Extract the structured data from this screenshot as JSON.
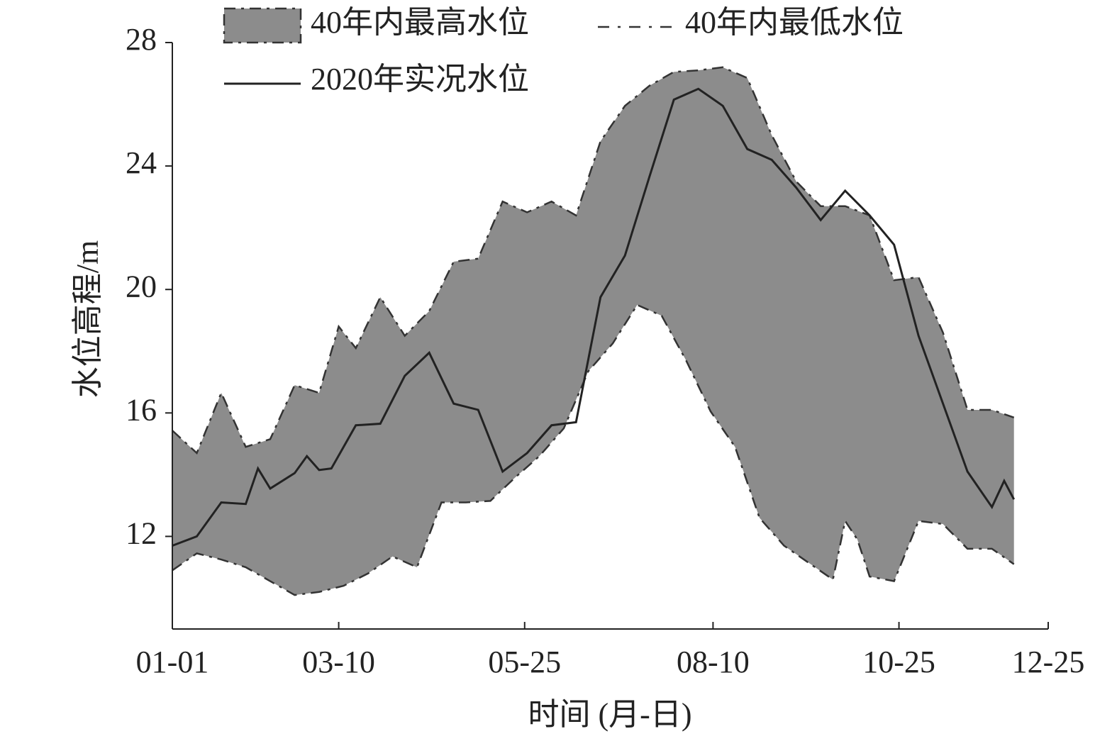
{
  "chart_data": {
    "type": "band-line",
    "x_label": "时间 (月-日)",
    "y_label": "水位高程/m",
    "ylim": [
      9,
      28
    ],
    "yticks": [
      12,
      16,
      20,
      24,
      28
    ],
    "xlim": [
      "01-01",
      "12-25"
    ],
    "xticks": [
      "01-01",
      "03-10",
      "05-25",
      "08-10",
      "10-25",
      "12-25"
    ],
    "band_color": "#8c8c8c",
    "series": [
      {
        "name": "40年内最高水位",
        "color": "#333333",
        "style": "dashed",
        "x": [
          "01-01",
          "01-11",
          "01-21",
          "01-31",
          "02-10",
          "02-20",
          "03-02",
          "03-10",
          "03-17",
          "03-27",
          "04-06",
          "04-16",
          "04-26",
          "05-06",
          "05-16",
          "05-26",
          "06-05",
          "06-15",
          "06-25",
          "07-05",
          "07-15",
          "07-25",
          "08-04",
          "08-14",
          "08-24",
          "09-03",
          "09-13",
          "09-23",
          "10-03",
          "10-13",
          "10-23",
          "11-02",
          "11-12",
          "11-22",
          "12-02",
          "12-11"
        ],
        "values": [
          15.43,
          14.7,
          16.65,
          14.9,
          15.15,
          16.9,
          16.65,
          18.8,
          18.1,
          19.75,
          18.5,
          19.3,
          20.9,
          21.0,
          22.85,
          22.5,
          22.85,
          22.4,
          24.8,
          25.95,
          26.6,
          27.05,
          27.1,
          27.2,
          26.85,
          25.0,
          23.5,
          22.7,
          22.7,
          22.4,
          20.3,
          20.4,
          18.6,
          16.1,
          16.1,
          15.85
        ]
      },
      {
        "name": "40年内最低水位",
        "color": "#333333",
        "style": "dashed",
        "x": [
          "01-01",
          "01-11",
          "01-21",
          "01-31",
          "02-10",
          "02-20",
          "03-02",
          "03-12",
          "03-22",
          "04-01",
          "04-11",
          "04-21",
          "05-01",
          "05-11",
          "05-21",
          "05-31",
          "06-10",
          "06-20",
          "06-30",
          "07-10",
          "07-20",
          "07-30",
          "08-09",
          "08-19",
          "08-29",
          "09-08",
          "09-18",
          "09-28",
          "10-03",
          "10-08",
          "10-13",
          "10-23",
          "11-02",
          "11-12",
          "11-22",
          "12-02",
          "12-11"
        ],
        "values": [
          10.9,
          11.45,
          11.25,
          11.0,
          10.55,
          10.1,
          10.2,
          10.4,
          10.8,
          11.35,
          11.0,
          13.1,
          13.1,
          13.15,
          13.9,
          14.6,
          15.5,
          17.35,
          18.25,
          19.5,
          19.15,
          17.7,
          16.05,
          14.9,
          12.6,
          11.7,
          11.15,
          10.6,
          12.5,
          11.9,
          10.7,
          10.55,
          12.5,
          12.4,
          11.6,
          11.6,
          11.1
        ]
      },
      {
        "name": "2020年实况水位",
        "color": "#222222",
        "style": "solid",
        "x": [
          "01-01",
          "01-11",
          "01-21",
          "01-31",
          "02-05",
          "02-10",
          "02-20",
          "02-25",
          "03-02",
          "03-07",
          "03-17",
          "03-27",
          "04-06",
          "04-16",
          "04-26",
          "05-06",
          "05-16",
          "05-26",
          "06-05",
          "06-15",
          "06-25",
          "07-05",
          "07-15",
          "07-25",
          "08-04",
          "08-14",
          "08-24",
          "09-03",
          "09-13",
          "09-23",
          "10-03",
          "10-13",
          "10-23",
          "11-02",
          "11-12",
          "11-22",
          "12-02",
          "12-07",
          "12-11"
        ],
        "values": [
          11.7,
          12.0,
          13.1,
          13.05,
          14.2,
          13.55,
          14.05,
          14.6,
          14.15,
          14.2,
          15.6,
          15.65,
          17.2,
          17.95,
          16.3,
          16.1,
          14.1,
          14.7,
          15.6,
          15.7,
          19.75,
          21.1,
          23.65,
          26.15,
          26.5,
          25.95,
          24.55,
          24.2,
          23.3,
          22.25,
          23.2,
          22.4,
          21.45,
          18.5,
          16.3,
          14.1,
          12.95,
          13.8,
          13.2
        ]
      }
    ]
  }
}
